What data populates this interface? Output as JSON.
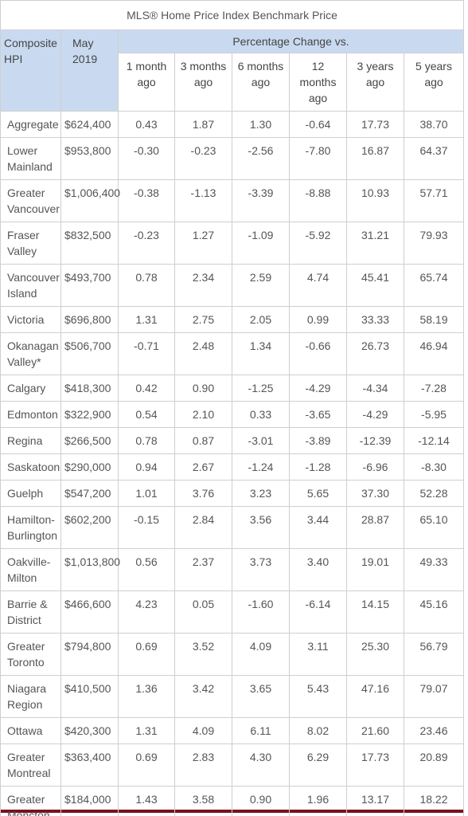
{
  "table": {
    "title": "MLS® Home Price Index Benchmark Price",
    "header": {
      "composite": "Composite HPI",
      "month": "May 2019",
      "group": "Percentage Change vs.",
      "cols": [
        "1 month ago",
        "3 months ago",
        "6 months ago",
        "12 months ago",
        "3 years ago",
        "5 years ago"
      ]
    },
    "rows": [
      [
        "Aggregate",
        "$624,400",
        "0.43",
        "1.87",
        "1.30",
        "-0.64",
        "17.73",
        "38.70"
      ],
      [
        "Lower Mainland",
        "$953,800",
        "-0.30",
        "-0.23",
        "-2.56",
        "-7.80",
        "16.87",
        "64.37"
      ],
      [
        "Greater Vancouver",
        "$1,006,400",
        "-0.38",
        "-1.13",
        "-3.39",
        "-8.88",
        "10.93",
        "57.71"
      ],
      [
        "Fraser Valley",
        "$832,500",
        "-0.23",
        "1.27",
        "-1.09",
        "-5.92",
        "31.21",
        "79.93"
      ],
      [
        "Vancouver Island",
        "$493,700",
        "0.78",
        "2.34",
        "2.59",
        "4.74",
        "45.41",
        "65.74"
      ],
      [
        "Victoria",
        "$696,800",
        "1.31",
        "2.75",
        "2.05",
        "0.99",
        "33.33",
        "58.19"
      ],
      [
        "Okanagan Valley*",
        "$506,700",
        "-0.71",
        "2.48",
        "1.34",
        "-0.66",
        "26.73",
        "46.94"
      ],
      [
        "Calgary",
        "$418,300",
        "0.42",
        "0.90",
        "-1.25",
        "-4.29",
        "-4.34",
        "-7.28"
      ],
      [
        "Edmonton",
        "$322,900",
        "0.54",
        "2.10",
        "0.33",
        "-3.65",
        "-4.29",
        "-5.95"
      ],
      [
        "Regina",
        "$266,500",
        "0.78",
        "0.87",
        "-3.01",
        "-3.89",
        "-12.39",
        "-12.14"
      ],
      [
        "Saskatoon",
        "$290,000",
        "0.94",
        "2.67",
        "-1.24",
        "-1.28",
        "-6.96",
        "-8.30"
      ],
      [
        "Guelph",
        "$547,200",
        "1.01",
        "3.76",
        "3.23",
        "5.65",
        "37.30",
        "52.28"
      ],
      [
        "Hamilton-Burlington",
        "$602,200",
        "-0.15",
        "2.84",
        "3.56",
        "3.44",
        "28.87",
        "65.10"
      ],
      [
        "Oakville-Milton",
        "$1,013,800",
        "0.56",
        "2.37",
        "3.73",
        "3.40",
        "19.01",
        "49.33"
      ],
      [
        "Barrie & District",
        "$466,600",
        "4.23",
        "0.05",
        "-1.60",
        "-6.14",
        "14.15",
        "45.16"
      ],
      [
        "Greater Toronto",
        "$794,800",
        "0.69",
        "3.52",
        "4.09",
        "3.11",
        "25.30",
        "56.79"
      ],
      [
        "Niagara Region",
        "$410,500",
        "1.36",
        "3.42",
        "3.65",
        "5.43",
        "47.16",
        "79.07"
      ],
      [
        "Ottawa",
        "$420,300",
        "1.31",
        "4.09",
        "6.11",
        "8.02",
        "21.60",
        "23.46"
      ],
      [
        "Greater Montreal",
        "$363,400",
        "0.69",
        "2.83",
        "4.30",
        "6.29",
        "17.73",
        "20.89"
      ],
      [
        "Greater Moncton",
        "$184,000",
        "1.43",
        "3.58",
        "0.90",
        "1.96",
        "13.17",
        "18.22"
      ]
    ]
  }
}
